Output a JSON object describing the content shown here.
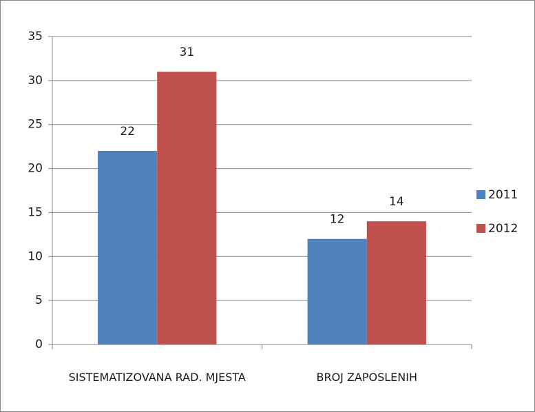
{
  "chart_data": {
    "type": "bar",
    "categories": [
      "SISTEMATIZOVANA RAD. MJESTA",
      "BROJ ZAPOSLENIH"
    ],
    "series": [
      {
        "name": "2011",
        "color": "#4f81bd",
        "values": [
          22,
          12
        ]
      },
      {
        "name": "2012",
        "color": "#c0504d",
        "values": [
          31,
          14
        ]
      }
    ],
    "ylim": [
      0,
      35
    ],
    "yticks": [
      0,
      5,
      10,
      15,
      20,
      25,
      30,
      35
    ],
    "grid": true,
    "legend": "right"
  }
}
